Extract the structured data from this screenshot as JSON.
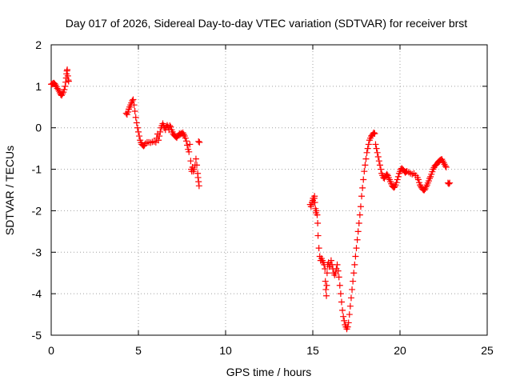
{
  "chart_data": {
    "type": "scatter",
    "title": "Day 017 of 2026, Sidereal Day-to-day VTEC variation (SDTVAR) for receiver brst",
    "xlabel": "GPS time / hours",
    "ylabel": "SDTVAR / TECUs",
    "xlim": [
      0,
      25
    ],
    "ylim": [
      -5,
      2
    ],
    "xticks": [
      "0",
      "5",
      "10",
      "15",
      "20",
      "25"
    ],
    "yticks": [
      "-5",
      "-4",
      "-3",
      "-2",
      "-1",
      "0",
      "1",
      "2"
    ],
    "grid": true,
    "marker": "plus",
    "color": "#ff0000",
    "series": [
      {
        "points": [
          [
            0.0,
            1.05
          ],
          [
            0.05,
            1.05
          ],
          [
            0.1,
            1.07
          ],
          [
            0.15,
            1.08
          ],
          [
            0.2,
            1.06
          ],
          [
            0.25,
            1.03
          ],
          [
            0.3,
            0.99
          ],
          [
            0.35,
            0.95
          ],
          [
            0.4,
            0.92
          ],
          [
            0.45,
            0.88
          ],
          [
            0.5,
            0.84
          ],
          [
            0.55,
            0.8
          ],
          [
            0.6,
            0.78
          ],
          [
            0.65,
            0.82
          ],
          [
            0.7,
            0.86
          ],
          [
            0.75,
            0.92
          ],
          [
            0.8,
            1.0
          ],
          [
            0.83,
            1.1
          ],
          [
            0.86,
            1.2
          ],
          [
            0.88,
            1.3
          ],
          [
            0.9,
            1.37
          ],
          [
            0.92,
            1.4
          ],
          [
            0.95,
            1.25
          ],
          [
            0.98,
            1.15
          ],
          [
            1.0,
            1.12
          ],
          [
            4.3,
            0.35
          ],
          [
            4.35,
            0.32
          ],
          [
            4.4,
            0.38
          ],
          [
            4.45,
            0.45
          ],
          [
            4.5,
            0.5
          ],
          [
            4.55,
            0.55
          ],
          [
            4.6,
            0.6
          ],
          [
            4.65,
            0.65
          ],
          [
            4.7,
            0.68
          ],
          [
            4.75,
            0.55
          ],
          [
            4.8,
            0.4
          ],
          [
            4.85,
            0.25
          ],
          [
            4.9,
            0.12
          ],
          [
            4.95,
            0.0
          ],
          [
            5.0,
            -0.1
          ],
          [
            5.05,
            -0.2
          ],
          [
            5.1,
            -0.3
          ],
          [
            5.15,
            -0.36
          ],
          [
            5.2,
            -0.4
          ],
          [
            5.25,
            -0.42
          ],
          [
            5.3,
            -0.44
          ],
          [
            5.35,
            -0.42
          ],
          [
            5.4,
            -0.38
          ],
          [
            5.5,
            -0.35
          ],
          [
            5.6,
            -0.35
          ],
          [
            5.7,
            -0.36
          ],
          [
            5.8,
            -0.34
          ],
          [
            5.9,
            -0.33
          ],
          [
            6.0,
            -0.35
          ],
          [
            6.05,
            -0.25
          ],
          [
            6.1,
            -0.15
          ],
          [
            6.15,
            -0.3
          ],
          [
            6.2,
            -0.2
          ],
          [
            6.25,
            -0.1
          ],
          [
            6.3,
            0.0
          ],
          [
            6.35,
            0.05
          ],
          [
            6.4,
            0.1
          ],
          [
            6.45,
            0.05
          ],
          [
            6.5,
            0.0
          ],
          [
            6.55,
            -0.05
          ],
          [
            6.6,
            0.02
          ],
          [
            6.65,
            0.06
          ],
          [
            6.7,
            0.02
          ],
          [
            6.75,
            -0.05
          ],
          [
            6.8,
            0.05
          ],
          [
            6.85,
            0.02
          ],
          [
            6.9,
            -0.05
          ],
          [
            6.95,
            -0.1
          ],
          [
            7.0,
            -0.15
          ],
          [
            7.05,
            -0.18
          ],
          [
            7.1,
            -0.2
          ],
          [
            7.15,
            -0.22
          ],
          [
            7.2,
            -0.24
          ],
          [
            7.25,
            -0.2
          ],
          [
            7.3,
            -0.18
          ],
          [
            7.35,
            -0.14
          ],
          [
            7.4,
            -0.16
          ],
          [
            7.45,
            -0.13
          ],
          [
            7.5,
            -0.15
          ],
          [
            7.55,
            -0.12
          ],
          [
            7.6,
            -0.16
          ],
          [
            7.65,
            -0.2
          ],
          [
            7.7,
            -0.25
          ],
          [
            7.75,
            -0.32
          ],
          [
            7.8,
            -0.42
          ],
          [
            7.85,
            -0.52
          ],
          [
            7.9,
            -0.58
          ],
          [
            7.95,
            -0.4
          ],
          [
            8.0,
            -0.8
          ],
          [
            8.03,
            -1.0
          ],
          [
            8.06,
            -1.05
          ],
          [
            8.1,
            -0.95
          ],
          [
            8.15,
            -1.05
          ],
          [
            8.2,
            -1.0
          ],
          [
            8.25,
            -0.9
          ],
          [
            8.3,
            -0.75
          ],
          [
            8.35,
            -0.9
          ],
          [
            8.4,
            -1.1
          ],
          [
            8.42,
            -1.2
          ],
          [
            8.45,
            -1.3
          ],
          [
            8.48,
            -1.4
          ],
          [
            8.5,
            -0.35
          ],
          [
            8.45,
            -0.33
          ],
          [
            14.85,
            -1.85
          ],
          [
            14.9,
            -1.9
          ],
          [
            14.95,
            -1.8
          ],
          [
            15.0,
            -1.75
          ],
          [
            15.02,
            -1.7
          ],
          [
            15.05,
            -1.8
          ],
          [
            15.08,
            -1.7
          ],
          [
            15.1,
            -1.65
          ],
          [
            15.12,
            -1.8
          ],
          [
            15.15,
            -1.95
          ],
          [
            15.18,
            -2.05
          ],
          [
            15.2,
            -2.0
          ],
          [
            15.25,
            -2.1
          ],
          [
            15.28,
            -2.3
          ],
          [
            15.3,
            -2.6
          ],
          [
            15.35,
            -2.9
          ],
          [
            15.4,
            -3.1
          ],
          [
            15.45,
            -3.2
          ],
          [
            15.5,
            -3.15
          ],
          [
            15.55,
            -3.2
          ],
          [
            15.6,
            -3.25
          ],
          [
            15.65,
            -3.3
          ],
          [
            15.7,
            -3.4
          ],
          [
            15.72,
            -3.7
          ],
          [
            15.75,
            -3.9
          ],
          [
            15.78,
            -4.05
          ],
          [
            15.8,
            -3.8
          ],
          [
            15.82,
            -3.5
          ],
          [
            15.85,
            -3.3
          ],
          [
            15.9,
            -3.25
          ],
          [
            15.95,
            -3.35
          ],
          [
            16.0,
            -3.3
          ],
          [
            16.05,
            -3.2
          ],
          [
            16.1,
            -3.3
          ],
          [
            16.15,
            -3.4
          ],
          [
            16.2,
            -3.5
          ],
          [
            16.25,
            -3.55
          ],
          [
            16.3,
            -3.5
          ],
          [
            16.35,
            -3.4
          ],
          [
            16.4,
            -3.3
          ],
          [
            16.45,
            -3.45
          ],
          [
            16.5,
            -3.6
          ],
          [
            16.55,
            -3.8
          ],
          [
            16.6,
            -4.0
          ],
          [
            16.65,
            -4.2
          ],
          [
            16.7,
            -4.4
          ],
          [
            16.75,
            -4.55
          ],
          [
            16.8,
            -4.65
          ],
          [
            16.85,
            -4.75
          ],
          [
            16.9,
            -4.8
          ],
          [
            16.95,
            -4.85
          ],
          [
            17.0,
            -4.8
          ],
          [
            17.05,
            -4.7
          ],
          [
            17.1,
            -4.5
          ],
          [
            17.15,
            -4.3
          ],
          [
            17.2,
            -4.1
          ],
          [
            17.25,
            -3.9
          ],
          [
            17.3,
            -3.7
          ],
          [
            17.35,
            -3.5
          ],
          [
            17.4,
            -3.3
          ],
          [
            17.45,
            -3.1
          ],
          [
            17.5,
            -2.9
          ],
          [
            17.55,
            -2.7
          ],
          [
            17.6,
            -2.5
          ],
          [
            17.65,
            -2.3
          ],
          [
            17.7,
            -2.1
          ],
          [
            17.75,
            -1.9
          ],
          [
            17.8,
            -1.65
          ],
          [
            17.85,
            -1.45
          ],
          [
            17.9,
            -1.25
          ],
          [
            17.95,
            -1.05
          ],
          [
            18.0,
            -0.9
          ],
          [
            18.05,
            -0.75
          ],
          [
            18.1,
            -0.6
          ],
          [
            18.15,
            -0.5
          ],
          [
            18.2,
            -0.4
          ],
          [
            18.25,
            -0.3
          ],
          [
            18.3,
            -0.25
          ],
          [
            18.35,
            -0.2
          ],
          [
            18.4,
            -0.18
          ],
          [
            18.45,
            -0.15
          ],
          [
            18.5,
            -0.12
          ],
          [
            18.55,
            -0.14
          ],
          [
            18.6,
            -0.4
          ],
          [
            18.65,
            -0.5
          ],
          [
            18.7,
            -0.6
          ],
          [
            18.75,
            -0.7
          ],
          [
            18.8,
            -0.8
          ],
          [
            18.85,
            -0.9
          ],
          [
            18.9,
            -1.0
          ],
          [
            18.95,
            -1.1
          ],
          [
            19.0,
            -1.15
          ],
          [
            19.05,
            -1.2
          ],
          [
            19.1,
            -1.22
          ],
          [
            19.15,
            -1.18
          ],
          [
            19.2,
            -1.15
          ],
          [
            19.25,
            -1.12
          ],
          [
            19.3,
            -1.15
          ],
          [
            19.35,
            -1.2
          ],
          [
            19.4,
            -1.25
          ],
          [
            19.45,
            -1.3
          ],
          [
            19.5,
            -1.35
          ],
          [
            19.55,
            -1.4
          ],
          [
            19.6,
            -1.42
          ],
          [
            19.65,
            -1.44
          ],
          [
            19.7,
            -1.42
          ],
          [
            19.75,
            -1.38
          ],
          [
            19.8,
            -1.32
          ],
          [
            19.85,
            -1.25
          ],
          [
            19.9,
            -1.18
          ],
          [
            19.95,
            -1.1
          ],
          [
            20.0,
            -1.05
          ],
          [
            20.05,
            -1.0
          ],
          [
            20.1,
            -0.98
          ],
          [
            20.15,
            -1.0
          ],
          [
            20.2,
            -1.02
          ],
          [
            20.25,
            -1.05
          ],
          [
            20.3,
            -1.08
          ],
          [
            20.35,
            -1.06
          ],
          [
            20.4,
            -1.05
          ],
          [
            20.5,
            -1.07
          ],
          [
            20.6,
            -1.1
          ],
          [
            20.7,
            -1.12
          ],
          [
            20.8,
            -1.1
          ],
          [
            20.9,
            -1.15
          ],
          [
            21.0,
            -1.2
          ],
          [
            21.05,
            -1.25
          ],
          [
            21.1,
            -1.32
          ],
          [
            21.15,
            -1.38
          ],
          [
            21.2,
            -1.42
          ],
          [
            21.25,
            -1.45
          ],
          [
            21.3,
            -1.48
          ],
          [
            21.35,
            -1.5
          ],
          [
            21.4,
            -1.5
          ],
          [
            21.45,
            -1.47
          ],
          [
            21.5,
            -1.42
          ],
          [
            21.55,
            -1.38
          ],
          [
            21.6,
            -1.33
          ],
          [
            21.65,
            -1.28
          ],
          [
            21.7,
            -1.22
          ],
          [
            21.75,
            -1.18
          ],
          [
            21.8,
            -1.12
          ],
          [
            21.85,
            -1.06
          ],
          [
            21.9,
            -1.0
          ],
          [
            21.95,
            -0.96
          ],
          [
            22.0,
            -0.92
          ],
          [
            22.05,
            -0.9
          ],
          [
            22.1,
            -0.88
          ],
          [
            22.15,
            -0.85
          ],
          [
            22.2,
            -0.82
          ],
          [
            22.25,
            -0.8
          ],
          [
            22.3,
            -0.78
          ],
          [
            22.35,
            -0.77
          ],
          [
            22.4,
            -0.76
          ],
          [
            22.45,
            -0.8
          ],
          [
            22.5,
            -0.84
          ],
          [
            22.55,
            -0.88
          ],
          [
            22.6,
            -0.92
          ],
          [
            22.65,
            -0.95
          ],
          [
            22.75,
            -1.33
          ],
          [
            22.8,
            -1.35
          ],
          [
            22.85,
            -1.33
          ]
        ]
      }
    ]
  }
}
